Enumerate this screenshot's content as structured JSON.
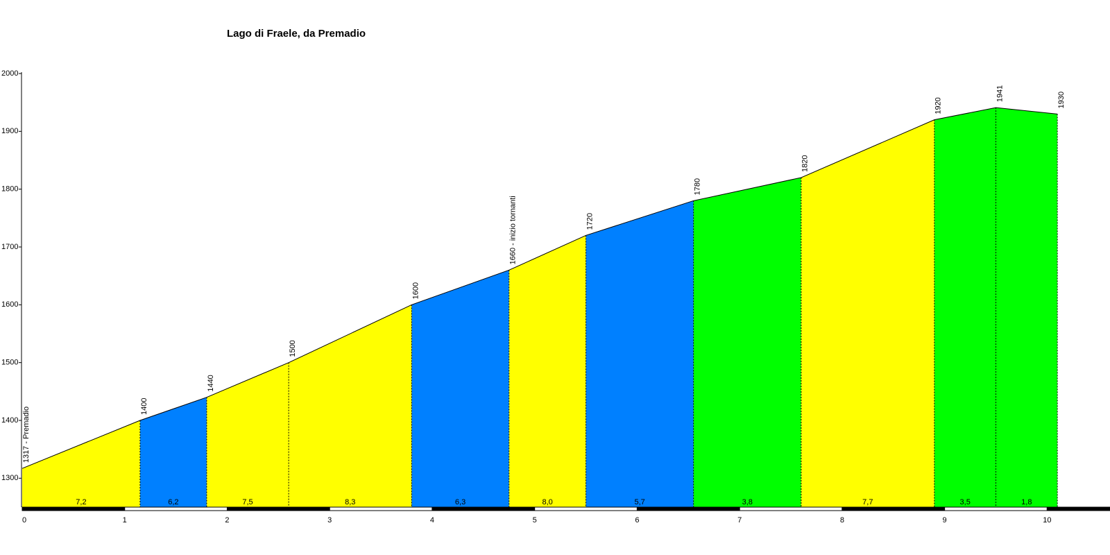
{
  "chart_data": {
    "type": "profile",
    "title": "Lago di Fraele, da Premadio",
    "x": [
      0,
      1.15,
      1.8,
      2.6,
      3.8,
      4.75,
      5.5,
      6.55,
      7.6,
      8.9,
      9.5,
      10.1
    ],
    "values": [
      1317,
      1400,
      1440,
      1500,
      1600,
      1660,
      1720,
      1780,
      1820,
      1920,
      1941,
      1930
    ],
    "value_labels": [
      "1317 - Premadio",
      "1400",
      "1440",
      "1500",
      "1600",
      "1660 - inizio tornanti",
      "1720",
      "1780",
      "1820",
      "1920",
      "1941",
      "1930"
    ],
    "gradients": {
      "values": [
        7.2,
        6.2,
        7.5,
        8.3,
        6.3,
        8.0,
        5.7,
        3.8,
        7.7,
        3.5,
        1.8
      ],
      "value_labels": [
        "7,2",
        "6,2",
        "7,5",
        "8,3",
        "6,3",
        "8,0",
        "5,7",
        "3,8",
        "7,7",
        "3,5",
        "1,8"
      ],
      "colors": [
        "#ffff00",
        "#0080ff",
        "#ffff00",
        "#ffff00",
        "#0080ff",
        "#ffff00",
        "#0080ff",
        "#00ff00",
        "#ffff00",
        "#00ff00",
        "#00ff00"
      ]
    },
    "xlim": [
      0,
      10.6
    ],
    "xticks": [
      0,
      1,
      2,
      3,
      4,
      5,
      6,
      7,
      8,
      9,
      10
    ],
    "ylim": [
      1250,
      2000
    ],
    "yticks": [
      1300,
      1400,
      1500,
      1600,
      1700,
      1800,
      1900,
      2000
    ]
  }
}
